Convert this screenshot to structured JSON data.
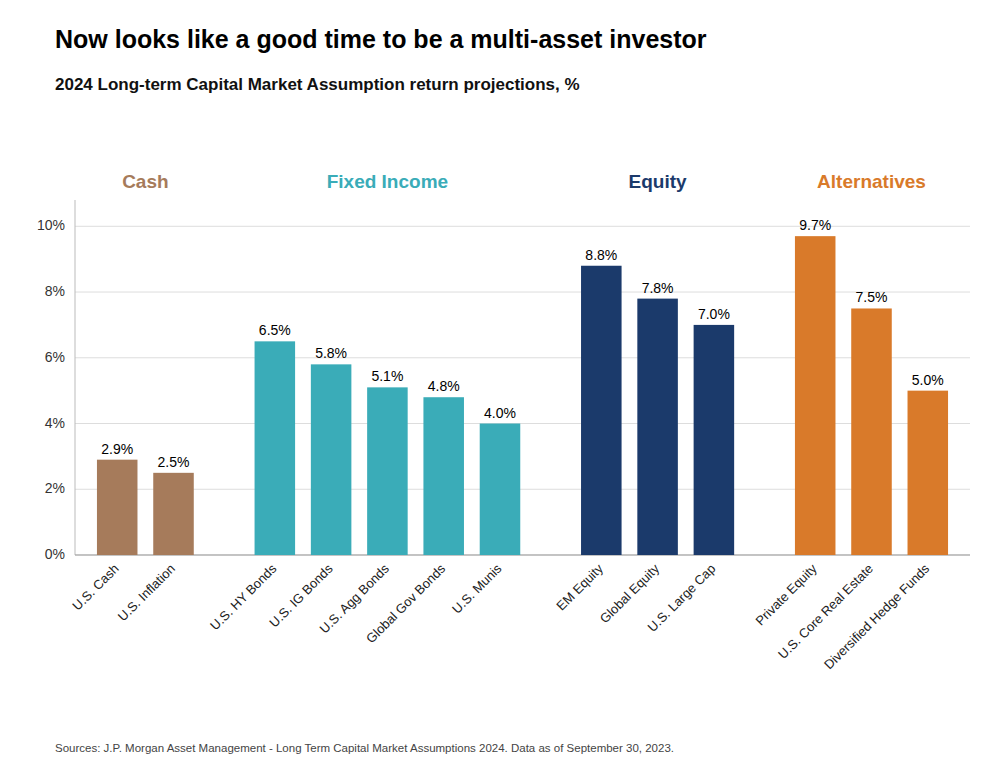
{
  "chart_data": {
    "type": "bar",
    "title": "Now looks like a good time to be a multi-asset investor",
    "subtitle": "2024 Long-term Capital Market Assumption return projections, %",
    "source": "Sources: J.P. Morgan Asset Management - Long Term Capital Market Assumptions 2024. Data as of September 30, 2023.",
    "categories": [
      "U.S. Cash",
      "U.S. Inflation",
      "U.S. HY Bonds",
      "U.S. IG Bonds",
      "U.S. Agg Bonds",
      "Global Gov Bonds",
      "U.S. Munis",
      "EM Equity",
      "Global Equity",
      "U.S. Large Cap",
      "Private Equity",
      "U.S. Core Real Estate",
      "Diversified Hedge Funds"
    ],
    "values": [
      2.9,
      2.5,
      6.5,
      5.8,
      5.1,
      4.8,
      4.0,
      8.8,
      7.8,
      7.0,
      9.7,
      7.5,
      5.0
    ],
    "value_labels": [
      "2.9%",
      "2.5%",
      "6.5%",
      "5.8%",
      "5.1%",
      "4.8%",
      "4.0%",
      "8.8%",
      "7.8%",
      "7.0%",
      "9.7%",
      "7.5%",
      "5.0%"
    ],
    "data_labels": true,
    "colors": [
      "#A67B5B",
      "#A67B5B",
      "#3AACB8",
      "#3AACB8",
      "#3AACB8",
      "#3AACB8",
      "#3AACB8",
      "#1B3A6B",
      "#1B3A6B",
      "#1B3A6B",
      "#D97A2A",
      "#D97A2A",
      "#D97A2A"
    ],
    "groups": [
      {
        "label": "Cash",
        "color": "#A67B5B",
        "categories": [
          "U.S. Cash",
          "U.S. Inflation"
        ]
      },
      {
        "label": "Fixed Income",
        "color": "#3AACB8",
        "categories": [
          "U.S. HY Bonds",
          "U.S. IG Bonds",
          "U.S. Agg Bonds",
          "Global Gov Bonds",
          "U.S. Munis"
        ]
      },
      {
        "label": "Equity",
        "color": "#1B3A6B",
        "categories": [
          "EM Equity",
          "Global Equity",
          "U.S. Large Cap"
        ]
      },
      {
        "label": "Alternatives",
        "color": "#D97A2A",
        "categories": [
          "Private Equity",
          "U.S. Core Real Estate",
          "Diversified Hedge Funds"
        ]
      }
    ],
    "ylim": [
      0,
      10.8
    ],
    "yticks": [
      {
        "value": 0,
        "label": "0%"
      },
      {
        "value": 2,
        "label": "2%"
      },
      {
        "value": 4,
        "label": "4%"
      },
      {
        "value": 6,
        "label": "6%"
      },
      {
        "value": 8,
        "label": "8%"
      },
      {
        "value": 10,
        "label": "10%"
      }
    ],
    "grid": true
  }
}
